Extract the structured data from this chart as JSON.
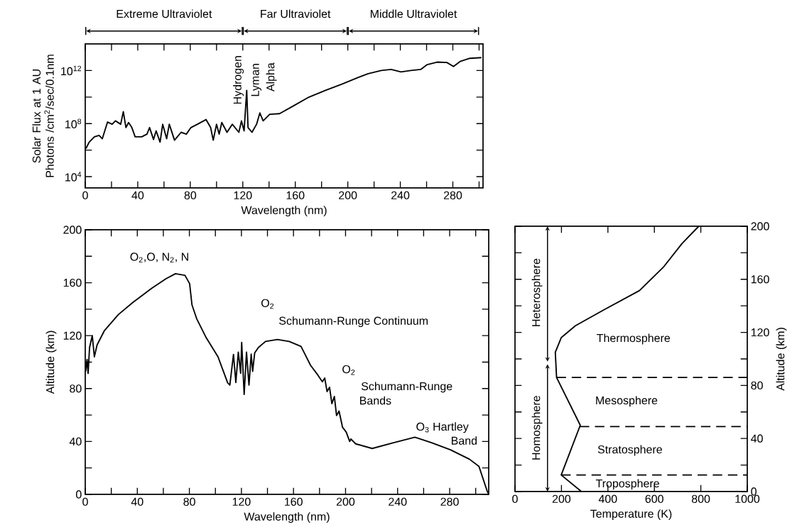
{
  "chart_data": [
    {
      "type": "line",
      "xlabel": "Wavelength (nm)",
      "ylabel": "Solar Flux at 1 AU Photons /cm$^{2}$/sec/0.1nm",
      "log": "y",
      "xlim": [
        0,
        303
      ],
      "ylim": [
        1400,
        100000000000000.0
      ],
      "xticks": [
        0,
        {
          "value": 20,
          "label": null
        },
        40,
        {
          "value": 60,
          "label": null
        },
        80,
        {
          "value": 100,
          "label": null
        },
        120,
        {
          "value": 140,
          "label": null
        },
        160,
        {
          "value": 180,
          "label": null
        },
        200,
        {
          "value": 220,
          "label": null
        },
        240,
        {
          "value": 260,
          "label": null
        },
        280,
        {
          "value": 300,
          "label": null
        }
      ],
      "yticks": [
        {
          "value": 10000.0,
          "label": "10$^{4}$"
        },
        {
          "value": 1000000.0,
          "label": null
        },
        {
          "value": 100000000.0,
          "label": "10$^{8}$"
        },
        {
          "value": 10000000000.0,
          "label": null
        },
        {
          "value": 1000000000000.0,
          "label": "10$^{12}$"
        }
      ],
      "series": [
        {
          "color": "#000000",
          "x": [
            0.5,
            3,
            7,
            10.5,
            13,
            17,
            20.5,
            23,
            27,
            29,
            31,
            33,
            35.5,
            38,
            43,
            47,
            49,
            52,
            54,
            57,
            59,
            62,
            64,
            68,
            73,
            77,
            80.5,
            85.5,
            92,
            95.5,
            97.5,
            100,
            102,
            104,
            108,
            112,
            117,
            119,
            121,
            123,
            124,
            127,
            130.5,
            133,
            135.5,
            140.5,
            148,
            158,
            170.5,
            183,
            195.5,
            208,
            215.5,
            225.5,
            233,
            240.5,
            248,
            255.5,
            260.5,
            268,
            275.5,
            280.5,
            285.5,
            293,
            301.75
          ],
          "values": [
            1300000.0,
            4000000.0,
            10000000.0,
            13000000.0,
            7200000.0,
            130000000.0,
            89000000.0,
            160000000.0,
            89000000.0,
            790000000.0,
            50000000.0,
            120000000.0,
            50000000.0,
            10000000.0,
            10000000.0,
            16000000.0,
            50000000.0,
            6300000.0,
            28000000.0,
            4000000.0,
            89000000.0,
            7200000.0,
            89000000.0,
            5600000.0,
            22000000.0,
            16000000.0,
            50000000.0,
            89000000.0,
            200000000.0,
            50000000.0,
            5600000.0,
            89000000.0,
            16000000.0,
            120000000.0,
            22000000.0,
            89000000.0,
            22000000.0,
            160000000.0,
            28000000.0,
            32000000000.0,
            50000000.0,
            22000000.0,
            89000000.0,
            630000000.0,
            160000000.0,
            500000000.0,
            560000000.0,
            2000000000.0,
            10000000000.0,
            32000000000.0,
            95000000000.0,
            300000000000.0,
            580000000000.0,
            1000000000000.0,
            1200000000000.0,
            790000000000.0,
            1000000000000.0,
            1200000000000.0,
            2800000000000.0,
            4300000000000.0,
            4000000000000.0,
            2000000000000.0,
            4800000000000.0,
            8300000000000.0,
            9300000000000.0
          ]
        }
      ],
      "annotations": [
        "Extreme Ultraviolet",
        "Far Ultraviolet",
        "Middle Ultraviolet",
        "Hydrogen",
        "Lyman",
        "Alpha"
      ]
    },
    {
      "type": "line",
      "xlabel": "Wavelength (nm)",
      "ylabel": "Altitude (km)",
      "xlim": [
        0,
        310
      ],
      "ylim": [
        0,
        200
      ],
      "xticks": [
        0,
        {
          "value": 20,
          "label": null
        },
        40,
        {
          "value": 60,
          "label": null
        },
        80,
        {
          "value": 100,
          "label": null
        },
        120,
        {
          "value": 140,
          "label": null
        },
        160,
        {
          "value": 180,
          "label": null
        },
        200,
        {
          "value": 220,
          "label": null
        },
        240,
        {
          "value": 260,
          "label": null
        },
        280,
        {
          "value": 300,
          "label": null
        }
      ],
      "yticks": [
        0,
        {
          "value": 20,
          "label": null
        },
        40,
        {
          "value": 60,
          "label": null
        },
        80,
        {
          "value": 100,
          "label": null
        },
        120,
        {
          "value": 140,
          "label": null
        },
        160,
        {
          "value": 180,
          "label": null
        },
        200
      ],
      "series": [
        {
          "color": "#000000",
          "x": [
            0.4,
            1.4,
            2.2,
            3.3,
            5.4,
            7,
            9.1,
            14.6,
            25.5,
            36.5,
            51,
            62,
            69.3,
            76.6,
            80.2,
            82,
            85.7,
            93,
            102,
            109.4,
            111.1,
            113.9,
            115.7,
            117.6,
            119.4,
            120.2,
            122.1,
            123.9,
            125.8,
            127.5,
            128.6,
            130.2,
            133,
            138.5,
            147.6,
            156.7,
            165.8,
            173.1,
            178.6,
            182.2,
            184,
            185.8,
            187.7,
            189.5,
            191.4,
            193.1,
            195,
            197.7,
            200.5,
            203.2,
            204.1,
            207.8,
            220.5,
            236.9,
            253.3,
            266.1,
            280.6,
            295.2,
            302.5,
            308.8,
            309.7
          ],
          "values": [
            93,
            102,
            91.5,
            111,
            120,
            104,
            113,
            123.6,
            136,
            145,
            155.8,
            163,
            166.8,
            165.6,
            159.3,
            143.3,
            132.6,
            118.3,
            104,
            84.4,
            82.6,
            105.8,
            84.6,
            107.6,
            91.6,
            114.9,
            75.6,
            107.6,
            82.6,
            106,
            93,
            107,
            111,
            115.6,
            117.1,
            115.6,
            111.9,
            97.6,
            90.4,
            85.1,
            88,
            77.7,
            81,
            68.6,
            74,
            59.6,
            63,
            50.7,
            47.1,
            40,
            41.9,
            38.2,
            34.7,
            39.1,
            43.2,
            39.1,
            33.7,
            26.6,
            21.2,
            2.5,
            0.7
          ]
        }
      ],
      "annotations": [
        "O$_{2}$,O, N$_{2}$, N",
        "O$_{2}$",
        "Schumann-Runge Continuum",
        "O$_{2}$",
        "Schumann-Runge",
        "Bands",
        "O$_{3}$ Hartley",
        "Band"
      ]
    },
    {
      "type": "line",
      "xlabel": "Temperature (K)",
      "y2label": "Altitude (km)",
      "xlim": [
        0,
        1000
      ],
      "y2lim": [
        0,
        200
      ],
      "xticks": [
        0,
        200,
        400,
        600,
        800,
        1000
      ],
      "y2ticks": [
        0,
        {
          "value": 20,
          "label": null
        },
        40,
        {
          "value": 60,
          "label": null
        },
        80,
        {
          "value": 100,
          "label": null
        },
        120,
        {
          "value": 140,
          "label": null
        },
        160,
        {
          "value": 180,
          "label": null
        },
        200
      ],
      "series": [
        {
          "color": "#000000",
          "axis": "y2",
          "x": [
            286,
            199,
            281,
            179,
            173.5,
            199,
            260,
            383,
            536,
            638,
            719,
            791
          ],
          "values": [
            0,
            12.5,
            50,
            86,
            105,
            116,
            125,
            137,
            151.5,
            169,
            187,
            200
          ]
        }
      ],
      "ref_lines": [
        {
          "axis": "y2",
          "value": 12.5,
          "line_style": "dashed"
        },
        {
          "axis": "y2",
          "value": 49,
          "line_style": "dashed"
        },
        {
          "axis": "y2",
          "value": 86,
          "line_style": "dashed"
        }
      ],
      "annotations": [
        "Heterosphere",
        "Homosphere",
        "Thermosphere",
        "Mesosphere",
        "Stratosphere",
        "Troposphere"
      ]
    }
  ]
}
